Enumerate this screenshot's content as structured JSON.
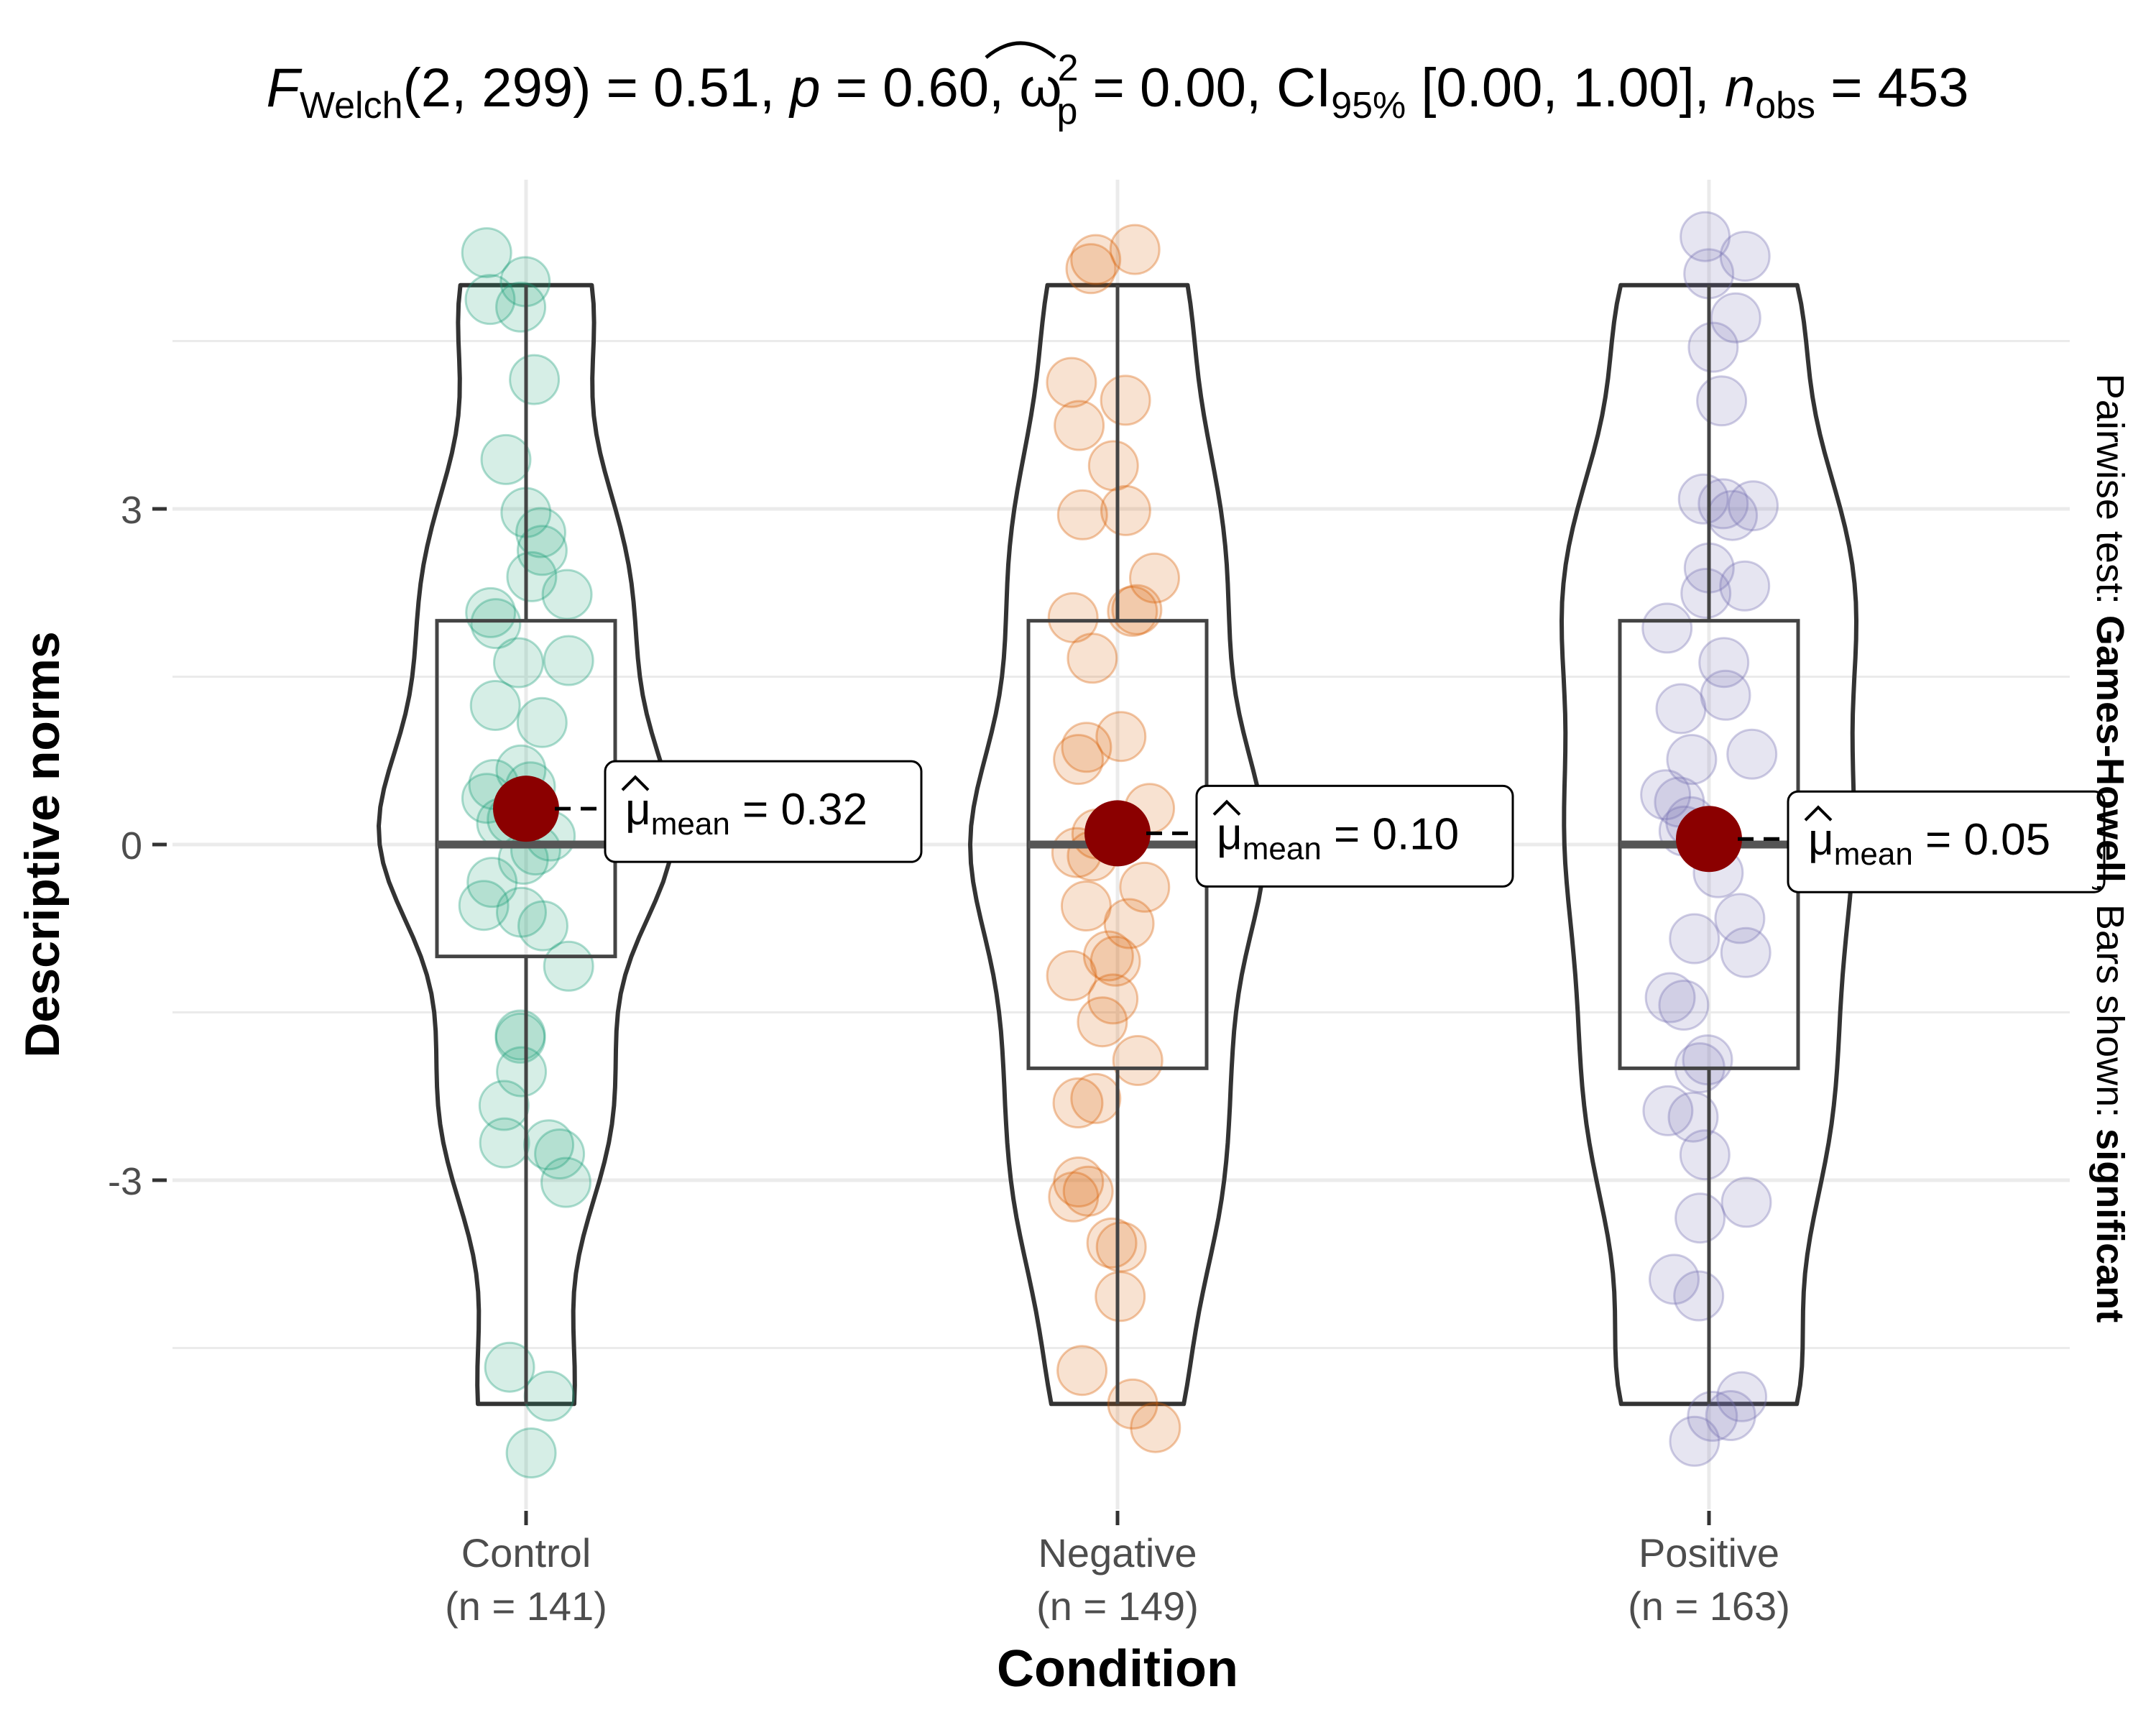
{
  "chart_data": {
    "type": "violin",
    "title": {
      "prefix": "F",
      "prefix_sub": "Welch",
      "df": "(2, 299) = 0.51, ",
      "p_label": "p",
      "p_value": " = 0.60, ",
      "omega_symbol": "ω",
      "omega_sup": "2",
      "omega_sub": "p",
      "omega_value": " = 0.00, CI",
      "ci_sub": "95%",
      "ci_value": " [0.00, 1.00], ",
      "n_label": "n",
      "n_sub": "obs",
      "n_value": " = 453"
    },
    "xlabel": "Condition",
    "ylabel": "Descriptive norms",
    "ylim": [
      -5.5,
      5.5
    ],
    "yticks": [
      -3,
      0,
      3
    ],
    "ytick_labels": [
      "-3",
      "0",
      "3"
    ],
    "subtitle_right": {
      "part1": "Pairwise test: ",
      "part2": "Games-Howell",
      "part3": ", Bars shown: ",
      "part4": "significant"
    },
    "categories": [
      {
        "name": "Control",
        "n_label": "(n = 141)",
        "color": "#1b9e77",
        "mean": 0.32,
        "mean_label_mu": "μ",
        "mean_label_sub": "mean",
        "mean_label_value": " = 0.32",
        "box": {
          "q1": -1,
          "median": 0,
          "q3": 2,
          "whisker_low": -5,
          "whisker_high": 5
        },
        "values": [
          5,
          5,
          4.8,
          5.1,
          4.2,
          3.3,
          3,
          3.1,
          2.8,
          2.4,
          2.2,
          2,
          2.1,
          1.8,
          1.6,
          1.2,
          1,
          0.8,
          0.6,
          0.4,
          0.3,
          0.2,
          0,
          0,
          0,
          0,
          -0.2,
          -0.4,
          -0.5,
          -0.8,
          -1,
          -1.7,
          -1.9,
          -2,
          -2.2,
          -2.5,
          -2.8,
          -3,
          -3.2,
          -5,
          -5.2,
          -4.6
        ]
      },
      {
        "name": "Negative",
        "n_label": "(n = 149)",
        "color": "#d95f02",
        "mean": 0.1,
        "mean_label_mu": "μ",
        "mean_label_sub": "mean",
        "mean_label_value": " = 0.10",
        "box": {
          "q1": -2,
          "median": 0,
          "q3": 2,
          "whisker_low": -5,
          "whisker_high": 5
        },
        "values": [
          5.2,
          5.2,
          5,
          4.2,
          4,
          3.5,
          3.2,
          3,
          2.8,
          2.5,
          2.2,
          2,
          1.9,
          1.5,
          1.1,
          1,
          0.8,
          0.5,
          0.3,
          0.1,
          0,
          0,
          -0.2,
          -0.3,
          -0.5,
          -0.8,
          -1,
          -1.3,
          -1.5,
          -1.8,
          -2,
          -2.2,
          -2.5,
          -2.8,
          -3,
          -3.2,
          -3.5,
          -3.8,
          -4,
          -4.9,
          -5,
          -5.3
        ]
      },
      {
        "name": "Positive",
        "n_label": "(n = 163)",
        "color": "#7570b3",
        "mean": 0.05,
        "mean_label_mu": "μ",
        "mean_label_sub": "mean",
        "mean_label_value": " = 0.05",
        "box": {
          "q1": -2,
          "median": 0,
          "q3": 2,
          "whisker_low": -5,
          "whisker_high": 5
        },
        "values": [
          5.2,
          5.3,
          5,
          4.5,
          4.2,
          3.8,
          3.3,
          3,
          3.1,
          2.8,
          2.5,
          2.2,
          2,
          2,
          1.8,
          1.5,
          1.2,
          1,
          0.8,
          0.5,
          0.3,
          0,
          0,
          -0.2,
          -0.5,
          -0.8,
          -1,
          -1.2,
          -1.8,
          -2,
          -2.2,
          -2.5,
          -2.8,
          -3,
          -3.2,
          -3.8,
          -4,
          -4.7,
          -5,
          -5.2,
          -5.1,
          -1.5
        ]
      }
    ]
  }
}
